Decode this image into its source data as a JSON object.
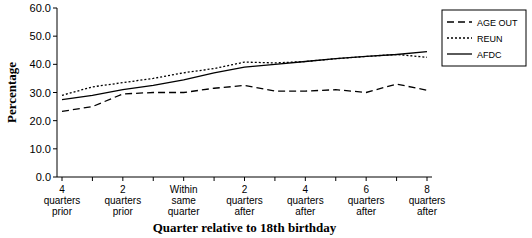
{
  "chart_data": {
    "type": "line",
    "x_label": "Quarter relative to 18th birthday",
    "y_label": "Percentage",
    "categories": [
      "4 quarters prior",
      null,
      "2 quarters prior",
      null,
      "Within same quarter",
      null,
      "2 quarters after",
      null,
      "4 quarters after",
      null,
      "6 quarters after",
      null,
      "8 quarters after"
    ],
    "series": [
      {
        "name": "AGE OUT",
        "color": "#000000",
        "line_style": "dashed",
        "values": [
          23.3,
          25.0,
          29.5,
          30.0,
          30.0,
          31.5,
          32.5,
          30.5,
          30.5,
          31.0,
          30.0,
          33.0,
          30.8
        ]
      },
      {
        "name": "REUN",
        "color": "#000000",
        "line_style": "dotted",
        "values": [
          29.0,
          32.0,
          33.5,
          35.0,
          37.0,
          38.5,
          40.8,
          40.5,
          41.0,
          42.0,
          42.8,
          43.5,
          42.5
        ]
      },
      {
        "name": "AFDC",
        "color": "#000000",
        "line_style": "solid",
        "values": [
          27.5,
          29.0,
          31.0,
          32.5,
          34.5,
          37.0,
          39.0,
          40.0,
          41.0,
          42.0,
          42.8,
          43.5,
          44.5
        ]
      }
    ],
    "ylim": [
      0,
      60
    ],
    "yticks": [
      {
        "value": 0,
        "label": "0.0"
      },
      {
        "value": 10,
        "label": "10.0"
      },
      {
        "value": 20,
        "label": "20.0"
      },
      {
        "value": 30,
        "label": "30.0"
      },
      {
        "value": 40,
        "label": "40.0"
      },
      {
        "value": 50,
        "label": "50.0"
      },
      {
        "value": 60,
        "label": "60.0"
      }
    ],
    "grid": false,
    "legend": "right"
  }
}
